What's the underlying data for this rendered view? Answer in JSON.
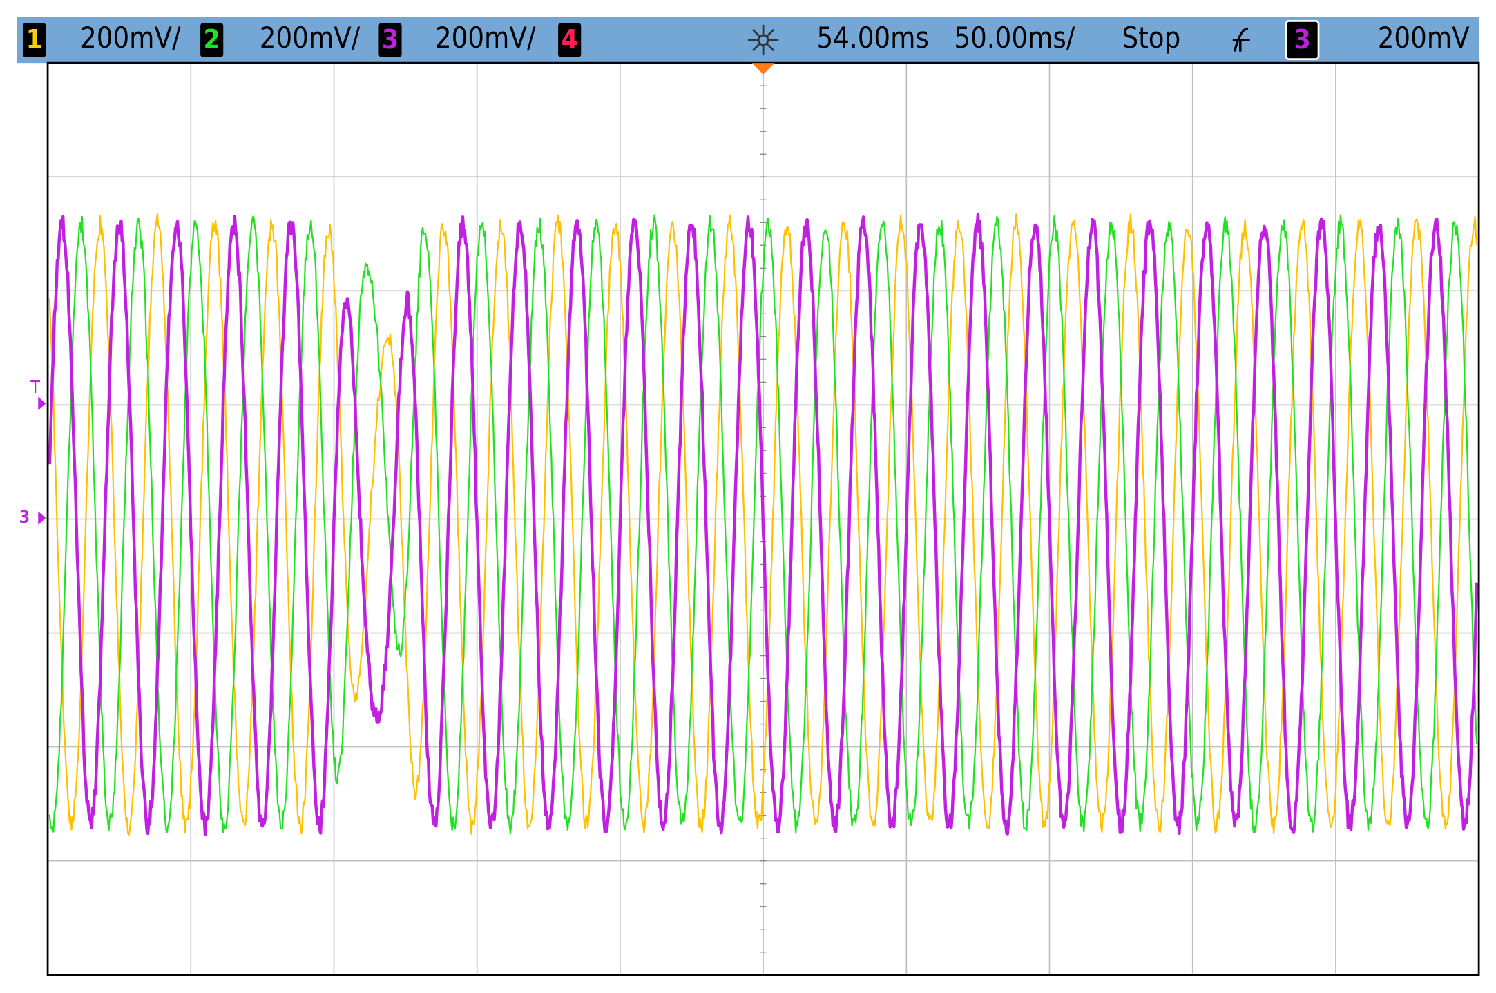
{
  "header": {
    "channels": [
      {
        "number": "1",
        "scale": "200mV/"
      },
      {
        "number": "2",
        "scale": "200mV/"
      },
      {
        "number": "3",
        "scale": "200mV/"
      },
      {
        "number": "4"
      }
    ],
    "time_delay": "54.00ms",
    "time_scale": "50.00ms/",
    "run_state": "Stop",
    "trigger_channel": "3",
    "trigger_level": "200mV"
  },
  "markers": {
    "trigger": "T",
    "ground": "3"
  }
}
